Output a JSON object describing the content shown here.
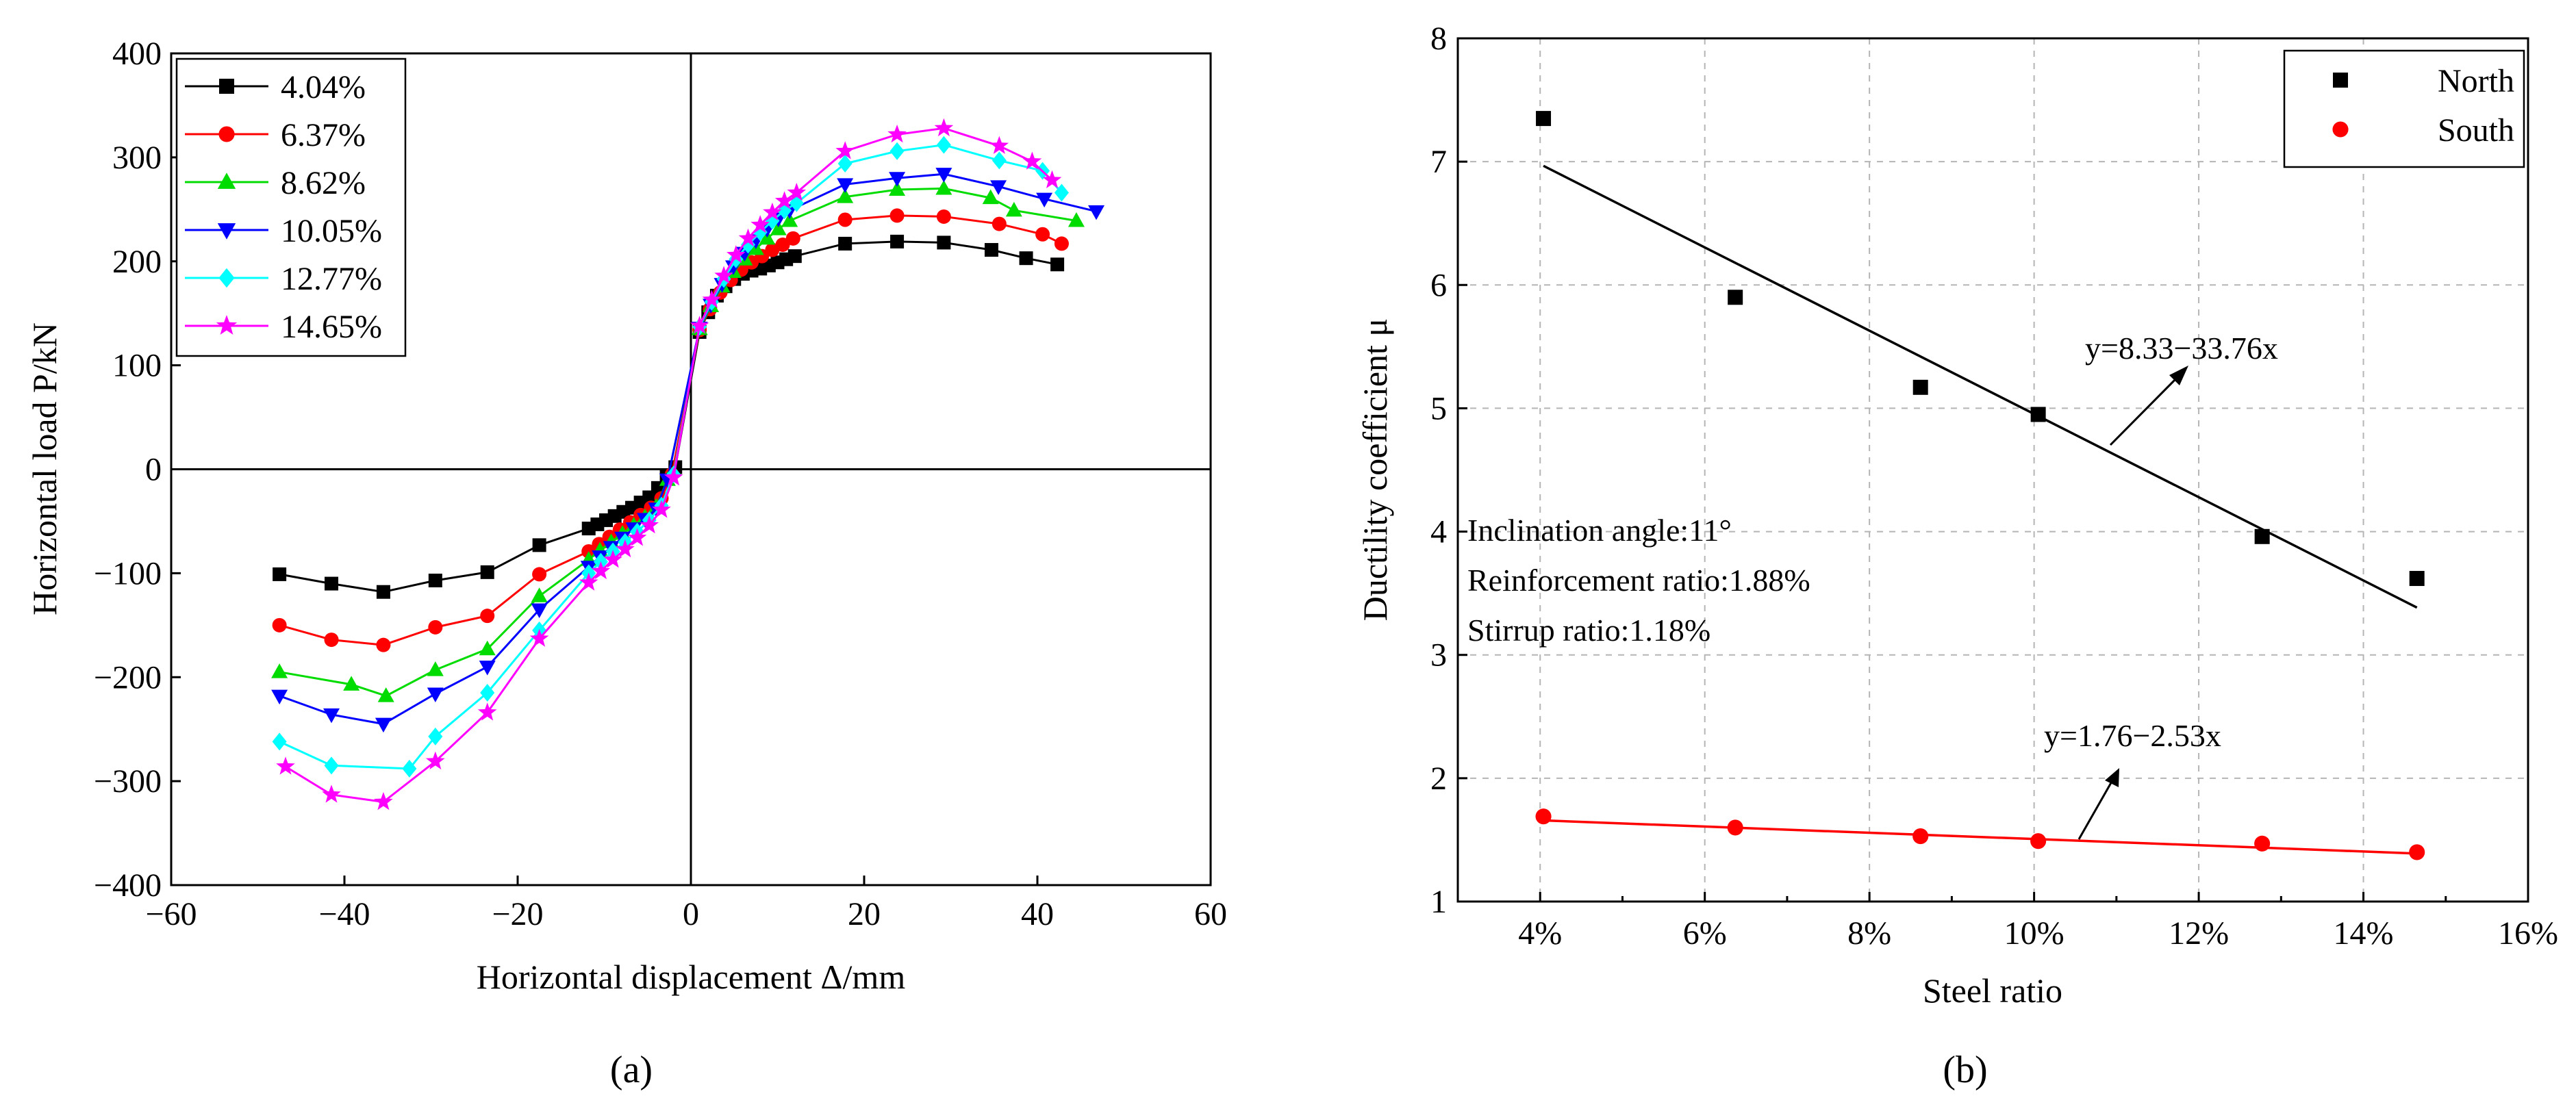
{
  "panel_labels": {
    "a": "(a)",
    "b": "(b)"
  },
  "chart_data": [
    {
      "type": "line",
      "xlabel": "Horizontal displacement Δ/mm",
      "ylabel": "Horizontal load P/kN",
      "xlim": [
        -60,
        60
      ],
      "ylim": [
        -400,
        400
      ],
      "xticks": [
        -60,
        -40,
        -20,
        0,
        20,
        40,
        60
      ],
      "yticks": [
        -400,
        -300,
        -200,
        -100,
        0,
        100,
        200,
        300,
        400
      ],
      "xtick_labels": [
        "−60",
        "−40",
        "−20",
        "0",
        "20",
        "40",
        "60"
      ],
      "ytick_labels": [
        "−400",
        "−300",
        "−200",
        "−100",
        "0",
        "100",
        "200",
        "300",
        "400"
      ],
      "legend": "top-left",
      "series": [
        {
          "name": "4.04%",
          "color": "#000000",
          "marker": "square",
          "x": [
            -47.5,
            -41.5,
            -35.5,
            -29.5,
            -23.5,
            -17.5,
            -11.8,
            -10.8,
            -9.8,
            -8.8,
            -7.8,
            -6.8,
            -5.8,
            -4.8,
            -3.8,
            -2.8,
            -1.8,
            1.0,
            2.0,
            3.0,
            4.0,
            5.0,
            6.0,
            7.0,
            8.0,
            9.0,
            10.0,
            11.0,
            12.0,
            17.8,
            23.8,
            29.2,
            34.7,
            38.7,
            42.3
          ],
          "y": [
            -101,
            -110,
            -118,
            -107,
            -99,
            -73,
            -57,
            -53,
            -49,
            -45,
            -41,
            -37,
            -32,
            -27,
            -18,
            -7,
            2,
            132,
            151,
            167,
            176,
            183,
            188,
            191,
            193,
            196,
            199,
            202,
            205,
            217,
            219,
            218,
            211,
            203,
            197
          ]
        },
        {
          "name": "6.37%",
          "color": "#ff0000",
          "marker": "circle",
          "x": [
            -47.5,
            -41.5,
            -35.5,
            -29.5,
            -23.5,
            -17.5,
            -11.8,
            -10.6,
            -9.4,
            -8.2,
            -7.0,
            -5.8,
            -4.6,
            -3.4,
            -2.2,
            1.0,
            2.2,
            3.4,
            4.6,
            5.8,
            7.0,
            8.2,
            9.4,
            10.6,
            11.8,
            17.8,
            23.8,
            29.2,
            35.6,
            40.6,
            42.8
          ],
          "y": [
            -150,
            -164,
            -169,
            -152,
            -141,
            -101,
            -79,
            -72,
            -65,
            -58,
            -51,
            -44,
            -37,
            -28,
            -5,
            134,
            154,
            170,
            182,
            192,
            199,
            205,
            211,
            216,
            222,
            240,
            244,
            243,
            236,
            226,
            217
          ]
        },
        {
          "name": "8.62%",
          "color": "#00dc00",
          "marker": "triangle-up",
          "x": [
            -47.5,
            -39.2,
            -35.2,
            -29.5,
            -23.5,
            -17.5,
            -11.8,
            -10.5,
            -9.2,
            -7.9,
            -6.6,
            -5.3,
            -4.0,
            -2.7,
            1.0,
            2.3,
            3.6,
            4.9,
            6.2,
            7.5,
            8.8,
            10.1,
            11.4,
            17.8,
            23.8,
            29.2,
            34.6,
            37.3,
            44.5
          ],
          "y": [
            -195,
            -207,
            -218,
            -193,
            -173,
            -122,
            -87,
            -78,
            -70,
            -62,
            -54,
            -46,
            -36,
            -10,
            135,
            157,
            176,
            190,
            202,
            212,
            222,
            231,
            239,
            262,
            269,
            270,
            261,
            249,
            239
          ]
        },
        {
          "name": "10.05%",
          "color": "#0000ff",
          "marker": "triangle-down",
          "x": [
            -47.5,
            -41.5,
            -35.5,
            -29.5,
            -23.5,
            -17.5,
            -11.8,
            -10.5,
            -9.2,
            -7.9,
            -6.6,
            -5.3,
            -4.0,
            -2.7,
            1.0,
            2.3,
            3.6,
            4.9,
            6.2,
            7.5,
            8.8,
            10.1,
            11.4,
            17.8,
            23.8,
            29.2,
            35.5,
            40.8,
            46.8
          ],
          "y": [
            -218,
            -236,
            -245,
            -216,
            -190,
            -135,
            -94,
            -84,
            -75,
            -66,
            -57,
            -48,
            -38,
            -10,
            136,
            158,
            178,
            195,
            208,
            220,
            231,
            241,
            249,
            274,
            280,
            284,
            272,
            260,
            248
          ]
        },
        {
          "name": "12.77%",
          "color": "#00ffff",
          "marker": "diamond",
          "x": [
            -47.5,
            -41.5,
            -32.5,
            -29.5,
            -23.5,
            -17.5,
            -11.8,
            -10.4,
            -9.0,
            -7.6,
            -6.2,
            -4.8,
            -3.4,
            -2.0,
            1.0,
            2.4,
            3.8,
            5.2,
            6.6,
            8.0,
            9.4,
            10.8,
            12.2,
            17.8,
            23.8,
            29.2,
            35.6,
            40.6,
            42.8
          ],
          "y": [
            -262,
            -285,
            -288,
            -257,
            -215,
            -155,
            -100,
            -89,
            -79,
            -70,
            -60,
            -49,
            -35,
            -5,
            137,
            161,
            183,
            202,
            216,
            228,
            239,
            249,
            256,
            294,
            306,
            312,
            297,
            287,
            266
          ]
        },
        {
          "name": "14.65%",
          "color": "#ff00ff",
          "marker": "star",
          "x": [
            -46.8,
            -41.5,
            -35.5,
            -29.5,
            -23.5,
            -17.5,
            -11.8,
            -10.4,
            -9.0,
            -7.6,
            -6.2,
            -4.8,
            -3.4,
            -2.0,
            1.0,
            2.4,
            3.8,
            5.2,
            6.6,
            8.0,
            9.4,
            10.8,
            12.2,
            17.8,
            23.8,
            29.2,
            35.6,
            39.4,
            41.7
          ],
          "y": [
            -286,
            -313,
            -320,
            -281,
            -234,
            -163,
            -109,
            -98,
            -87,
            -77,
            -66,
            -54,
            -39,
            -8,
            138,
            163,
            186,
            206,
            222,
            235,
            247,
            258,
            266,
            306,
            322,
            328,
            311,
            296,
            278
          ]
        }
      ]
    },
    {
      "type": "scatter",
      "xlabel": "Steel ratio",
      "ylabel": "Ductility coefficient μ",
      "xlim": [
        0.03,
        0.16
      ],
      "ylim": [
        1,
        8
      ],
      "xticks": [
        0.04,
        0.06,
        0.08,
        0.1,
        0.12,
        0.14,
        0.16
      ],
      "yticks": [
        1,
        2,
        3,
        4,
        5,
        6,
        7,
        8
      ],
      "xtick_labels": [
        "4%",
        "6%",
        "8%",
        "10%",
        "12%",
        "14%",
        "16%"
      ],
      "ytick_labels": [
        "1",
        "2",
        "3",
        "4",
        "5",
        "6",
        "7",
        "8"
      ],
      "grid": true,
      "legend": "top-right",
      "series": [
        {
          "name": "North",
          "color": "#000000",
          "marker": "square",
          "x": [
            0.0404,
            0.0637,
            0.0862,
            0.1005,
            0.1277,
            0.1465
          ],
          "y": [
            7.35,
            5.9,
            5.17,
            4.95,
            3.96,
            3.62
          ],
          "fit": {
            "intercept": 8.33,
            "slope": -33.76,
            "x_range": [
              0.0404,
              0.1465
            ],
            "label": "y=8.33−33.76x"
          }
        },
        {
          "name": "South",
          "color": "#ff0000",
          "marker": "circle",
          "x": [
            0.0404,
            0.0637,
            0.0862,
            0.1005,
            0.1277,
            0.1465
          ],
          "y": [
            1.69,
            1.6,
            1.53,
            1.49,
            1.47,
            1.4
          ],
          "fit": {
            "intercept": 1.76,
            "slope": -2.53,
            "x_range": [
              0.0404,
              0.1465
            ],
            "label": "y=1.76−2.53x"
          }
        }
      ],
      "annotations": {
        "line1": "Inclination angle:11°",
        "line2": "Reinforcement ratio:1.88%",
        "line3": "Stirrup ratio:1.18%"
      }
    }
  ]
}
